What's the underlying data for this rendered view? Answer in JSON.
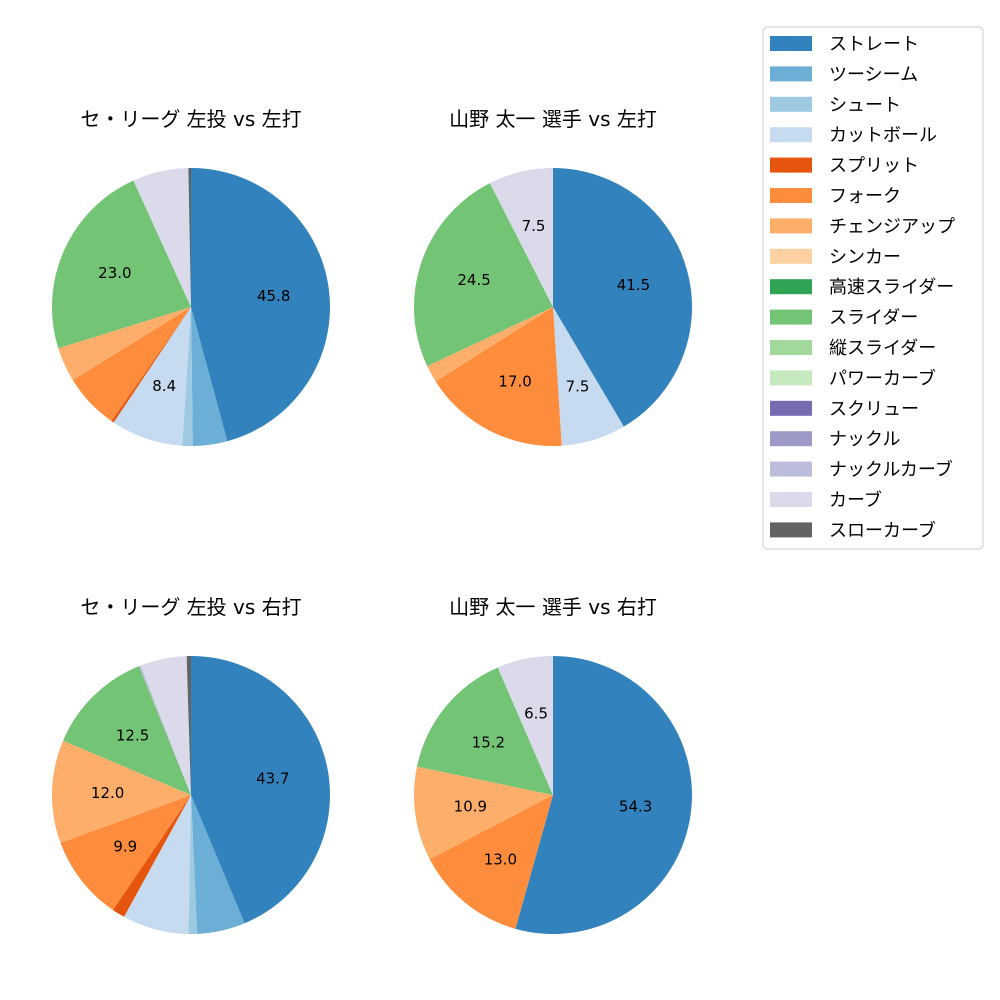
{
  "chart_data": {
    "type": "pie",
    "legend_placement": "top-right",
    "categories": [
      "ストレート",
      "ツーシーム",
      "シュート",
      "カットボール",
      "スプリット",
      "フォーク",
      "チェンジアップ",
      "シンカー",
      "高速スライダー",
      "スライダー",
      "縦スライダー",
      "パワーカーブ",
      "スクリュー",
      "ナックル",
      "ナックルカーブ",
      "カーブ",
      "スローカーブ"
    ],
    "colors": [
      "#3182bd",
      "#6baed6",
      "#9ecae1",
      "#c6dbef",
      "#e6550d",
      "#fd8d3c",
      "#fdae6b",
      "#fdd0a2",
      "#31a354",
      "#74c476",
      "#a1d99b",
      "#c7e9c0",
      "#756bb1",
      "#9e9ac8",
      "#bcbddc",
      "#dadaeb",
      "#636363"
    ],
    "charts": [
      {
        "title": "セ・リーグ 左投 vs 左打",
        "values": [
          45.8,
          4.0,
          1.2,
          8.4,
          0.3,
          6.5,
          4.0,
          0,
          0,
          23.0,
          0,
          0,
          0,
          0,
          0,
          6.5,
          0.3
        ],
        "labeled": [
          0,
          3,
          9
        ]
      },
      {
        "title": "山野 太一 選手 vs 左打",
        "values": [
          41.5,
          0,
          0,
          7.5,
          0,
          17.0,
          2.0,
          0,
          0,
          24.5,
          0,
          0,
          0,
          0,
          0,
          7.5,
          0
        ],
        "labeled": [
          0,
          3,
          5,
          9,
          15
        ]
      },
      {
        "title": "セ・リーグ 左投 vs 右打",
        "values": [
          43.7,
          5.6,
          1.0,
          7.7,
          1.5,
          9.9,
          12.0,
          0,
          0,
          12.5,
          0,
          0,
          0,
          0,
          0.2,
          5.4,
          0.5
        ],
        "labeled": [
          0,
          5,
          6,
          9
        ]
      },
      {
        "title": "山野 太一 選手 vs 右打",
        "values": [
          54.3,
          0,
          0,
          0,
          0,
          13.0,
          10.9,
          0,
          0,
          15.2,
          0,
          0,
          0,
          0,
          0,
          6.5,
          0
        ],
        "labeled": [
          0,
          5,
          6,
          9,
          15
        ]
      }
    ]
  }
}
